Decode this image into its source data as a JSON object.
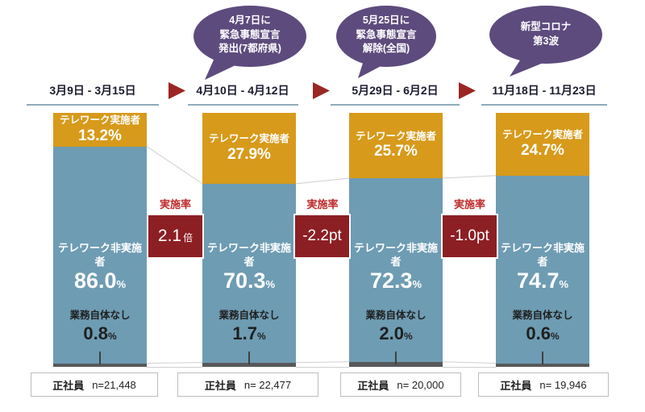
{
  "bubbles": [
    {
      "lines": [
        "4月7日に",
        "緊急事態宣言",
        "発出(7都府県)"
      ]
    },
    {
      "lines": [
        "5月25日に",
        "緊急事態宣言",
        "解除(全国)"
      ]
    },
    {
      "lines": [
        "新型コロナ",
        "第3波"
      ]
    }
  ],
  "periods": [
    {
      "date_range": "3月9日 - 3月15日",
      "implementer": {
        "label": "テレワーク実施者",
        "pct": 13.2,
        "display": "13.2%"
      },
      "non_implementer": {
        "label": "テレワーク非実施者",
        "pct": 86.0,
        "value": "86.0",
        "unit": "%"
      },
      "no_work": {
        "label": "業務自体なし",
        "pct": 0.8,
        "value": "0.8",
        "unit": "%"
      },
      "sample": {
        "group": "正社員",
        "n": "n=21,448"
      }
    },
    {
      "date_range": "4月10日 - 4月12日",
      "implementer": {
        "label": "テレワーク実施者",
        "pct": 27.9,
        "display": "27.9%"
      },
      "non_implementer": {
        "label": "テレワーク非実施者",
        "pct": 70.3,
        "value": "70.3",
        "unit": "%"
      },
      "no_work": {
        "label": "業務自体なし",
        "pct": 1.7,
        "value": "1.7",
        "unit": "%"
      },
      "sample": {
        "group": "正社員",
        "n": "n= 22,477"
      }
    },
    {
      "date_range": "5月29日 - 6月2日",
      "implementer": {
        "label": "テレワーク実施者",
        "pct": 25.7,
        "display": "25.7%"
      },
      "non_implementer": {
        "label": "テレワーク非実施者",
        "pct": 72.3,
        "value": "72.3",
        "unit": "%"
      },
      "no_work": {
        "label": "業務自体なし",
        "pct": 2.0,
        "value": "2.0",
        "unit": "%"
      },
      "sample": {
        "group": "正社員",
        "n": "n= 20,000"
      }
    },
    {
      "date_range": "11月18日 - 11月23日",
      "implementer": {
        "label": "テレワーク実施者",
        "pct": 24.7,
        "display": "24.7%"
      },
      "non_implementer": {
        "label": "テレワーク非実施者",
        "pct": 74.7,
        "value": "74.7",
        "unit": "%"
      },
      "no_work": {
        "label": "業務自体なし",
        "pct": 0.6,
        "value": "0.6",
        "unit": "%"
      },
      "sample": {
        "group": "正社員",
        "n": "n= 19,946"
      }
    }
  ],
  "rate_changes": [
    {
      "label": "実施率",
      "main": "2.1",
      "suffix": "倍"
    },
    {
      "label": "実施率",
      "main": "-2.2pt",
      "suffix": ""
    },
    {
      "label": "実施率",
      "main": "-1.0pt",
      "suffix": ""
    }
  ],
  "colors": {
    "implementer": "#D79A1B",
    "non_implementer": "#6E9CB3",
    "no_work": "#58595B",
    "rate_box": "#8C1F24",
    "rate_label": "#BF2B2B",
    "bubble": "#5D4B7D",
    "arrow": "#9A2723",
    "underline": "#8FABBA",
    "connector": "#CFCFCF",
    "date_text": "#1B1B30"
  },
  "chart_data": {
    "type": "bar",
    "stacked": true,
    "orientation": "vertical",
    "categories": [
      "3月9日 - 3月15日",
      "4月10日 - 4月12日",
      "5月29日 - 6月2日",
      "11月18日 - 11月23日"
    ],
    "series": [
      {
        "name": "テレワーク実施者",
        "values": [
          13.2,
          27.9,
          25.7,
          24.7
        ],
        "color": "#D79A1B"
      },
      {
        "name": "テレワーク非実施者",
        "values": [
          86.0,
          70.3,
          72.3,
          74.7
        ],
        "color": "#6E9CB3"
      },
      {
        "name": "業務自体なし",
        "values": [
          0.8,
          1.7,
          2.0,
          0.6
        ],
        "color": "#58595B"
      }
    ],
    "unit": "%",
    "ylim": [
      0,
      100
    ],
    "grid": false,
    "legend_position": "none",
    "annotations": {
      "events": [
        "4月7日に緊急事態宣言発出(7都府県)",
        "5月25日に緊急事態宣言解除(全国)",
        "新型コロナ第3波"
      ],
      "rate_change_label": "実施率",
      "rate_changes": [
        "2.1倍",
        "-2.2pt",
        "-1.0pt"
      ],
      "samples": [
        "正社員 n=21,448",
        "正社員 n= 22,477",
        "正社員 n= 20,000",
        "正社員 n= 19,946"
      ]
    }
  }
}
